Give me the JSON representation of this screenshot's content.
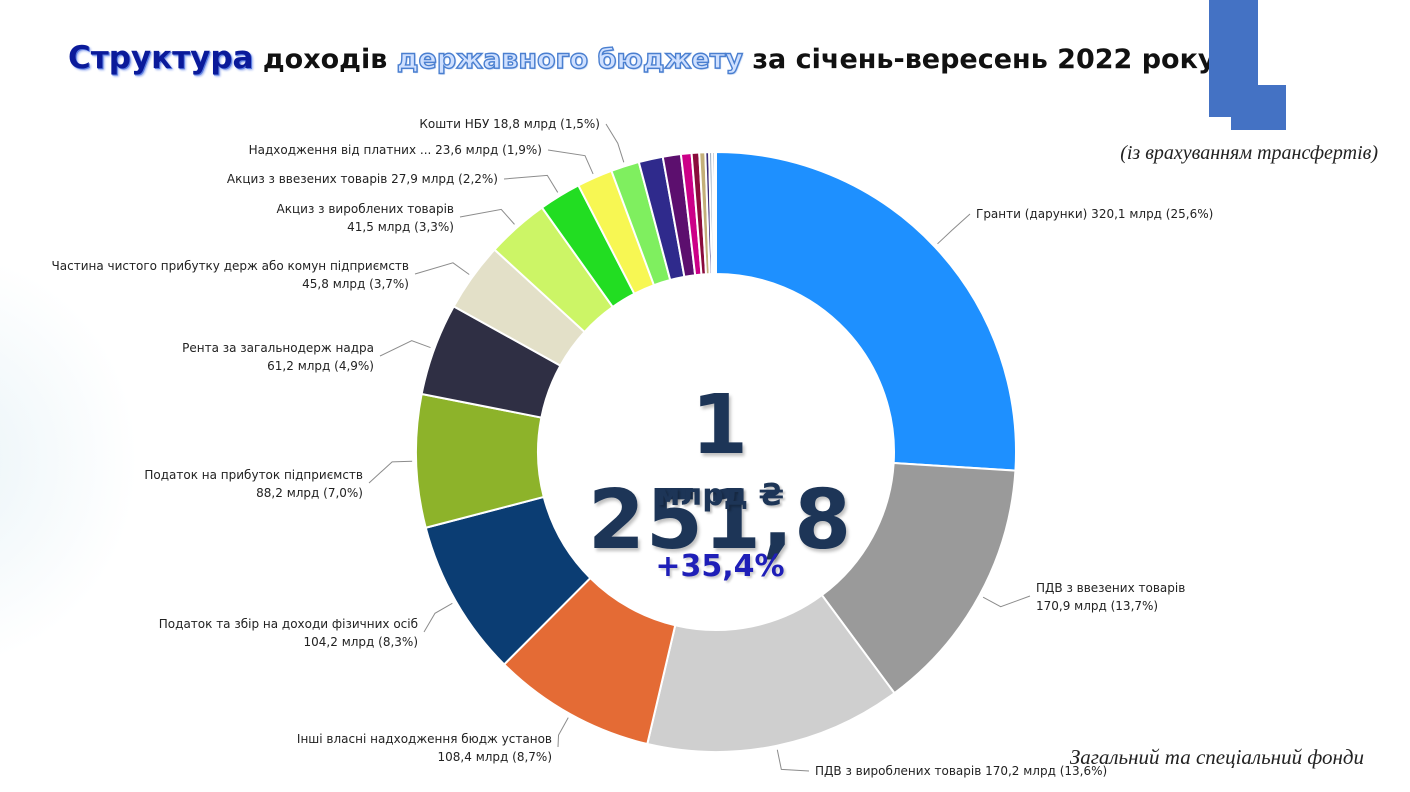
{
  "title": {
    "part1": "Структура",
    "part2": " доходів ",
    "part3": "державного бюджету",
    "part4": " за січень-вересень 2022 року"
  },
  "subnote": "(із врахуванням трансфертів)",
  "footnote": "Загальний та спеціальний фонди",
  "center": {
    "total": "1 251,8",
    "unit": "млрд ₴",
    "growth": "+35,4%"
  },
  "colors": {
    "accent": "#4472c4",
    "title_dark": "#0a1a9a",
    "center_text": "#1d3557"
  },
  "chart_data": {
    "type": "pie",
    "donut": true,
    "total": 1251.8,
    "slices": [
      {
        "name": "Гранти (дарунки)",
        "value": 320.1,
        "pct": 25.6,
        "color": "#1e90ff",
        "label_lines": [
          "Гранти (дарунки) 320,1 млрд (25,6%)"
        ]
      },
      {
        "name": "ПДВ з ввезених товарів",
        "value": 170.9,
        "pct": 13.7,
        "color": "#9a9a9a",
        "label_lines": [
          "ПДВ з ввезених товарів",
          "170,9 млрд (13,7%)"
        ]
      },
      {
        "name": "ПДВ з вироблених товарів",
        "value": 170.2,
        "pct": 13.6,
        "color": "#cfcfcf",
        "label_lines": [
          "ПДВ з вироблених товарів 170,2 млрд (13,6%)"
        ]
      },
      {
        "name": "Інші власні надходження бюдж установ",
        "value": 108.4,
        "pct": 8.7,
        "color": "#e46b35",
        "label_lines": [
          "Інші власні надходження бюдж установ",
          "108,4 млрд (8,7%)"
        ]
      },
      {
        "name": "Податок та збір на доходи фізичних осіб",
        "value": 104.2,
        "pct": 8.3,
        "color": "#0b3d73",
        "label_lines": [
          "Податок та збір на доходи фізичних осіб",
          "104,2 млрд (8,3%)"
        ]
      },
      {
        "name": "Податок на прибуток підприємств",
        "value": 88.2,
        "pct": 7.0,
        "color": "#8db32a",
        "label_lines": [
          "Податок на прибуток підприємств",
          "88,2 млрд (7,0%)"
        ]
      },
      {
        "name": "Рента за загальнодерж надра",
        "value": 61.2,
        "pct": 4.9,
        "color": "#2f2f44",
        "label_lines": [
          "Рента за загальнодерж надра",
          "61,2 млрд (4,9%)"
        ]
      },
      {
        "name": "Частина чистого прибутку держ або комун підприємств",
        "value": 45.8,
        "pct": 3.7,
        "color": "#e3e0c8",
        "label_lines": [
          "Частина чистого прибутку держ або комун підприємств",
          "45,8 млрд (3,7%)"
        ]
      },
      {
        "name": "Акциз з вироблених товарів",
        "value": 41.5,
        "pct": 3.3,
        "color": "#ccf566",
        "label_lines": [
          "Акциз з вироблених товарів",
          "41,5 млрд (3,3%)"
        ]
      },
      {
        "name": "Акциз з ввезених товарів",
        "value": 27.9,
        "pct": 2.2,
        "color": "#22dd22",
        "label_lines": [
          "Акциз з ввезених товарів 27,9 млрд (2,2%)"
        ]
      },
      {
        "name": "Надходження від платних ...",
        "value": 23.6,
        "pct": 1.9,
        "color": "#f7f753",
        "label_lines": [
          "Надходження від платних ... 23,6 млрд (1,9%)"
        ]
      },
      {
        "name": "Кошти НБУ",
        "value": 18.8,
        "pct": 1.5,
        "color": "#7fef5f",
        "label_lines": [
          "Кошти НБУ 18,8 млрд (1,5%)"
        ]
      },
      {
        "name": "",
        "value": 16.0,
        "color": "#2f2a8c",
        "label_lines": []
      },
      {
        "name": "",
        "value": 12.0,
        "color": "#5c0f6e",
        "label_lines": []
      },
      {
        "name": "",
        "value": 7.0,
        "color": "#cc0088",
        "label_lines": []
      },
      {
        "name": "",
        "value": 5.0,
        "color": "#8a0c3c",
        "label_lines": []
      },
      {
        "name": "",
        "value": 4.0,
        "color": "#c4b07a",
        "label_lines": []
      },
      {
        "name": "",
        "value": 2.5,
        "color": "#3a2a75",
        "label_lines": []
      },
      {
        "name": "",
        "value": 2.0,
        "color": "#8fa0b4",
        "label_lines": []
      },
      {
        "name": "",
        "value": 1.5,
        "color": "#4b5a7a",
        "label_lines": []
      },
      {
        "name": "",
        "value": 1.0,
        "color": "#7ecbd6",
        "label_lines": []
      }
    ]
  }
}
